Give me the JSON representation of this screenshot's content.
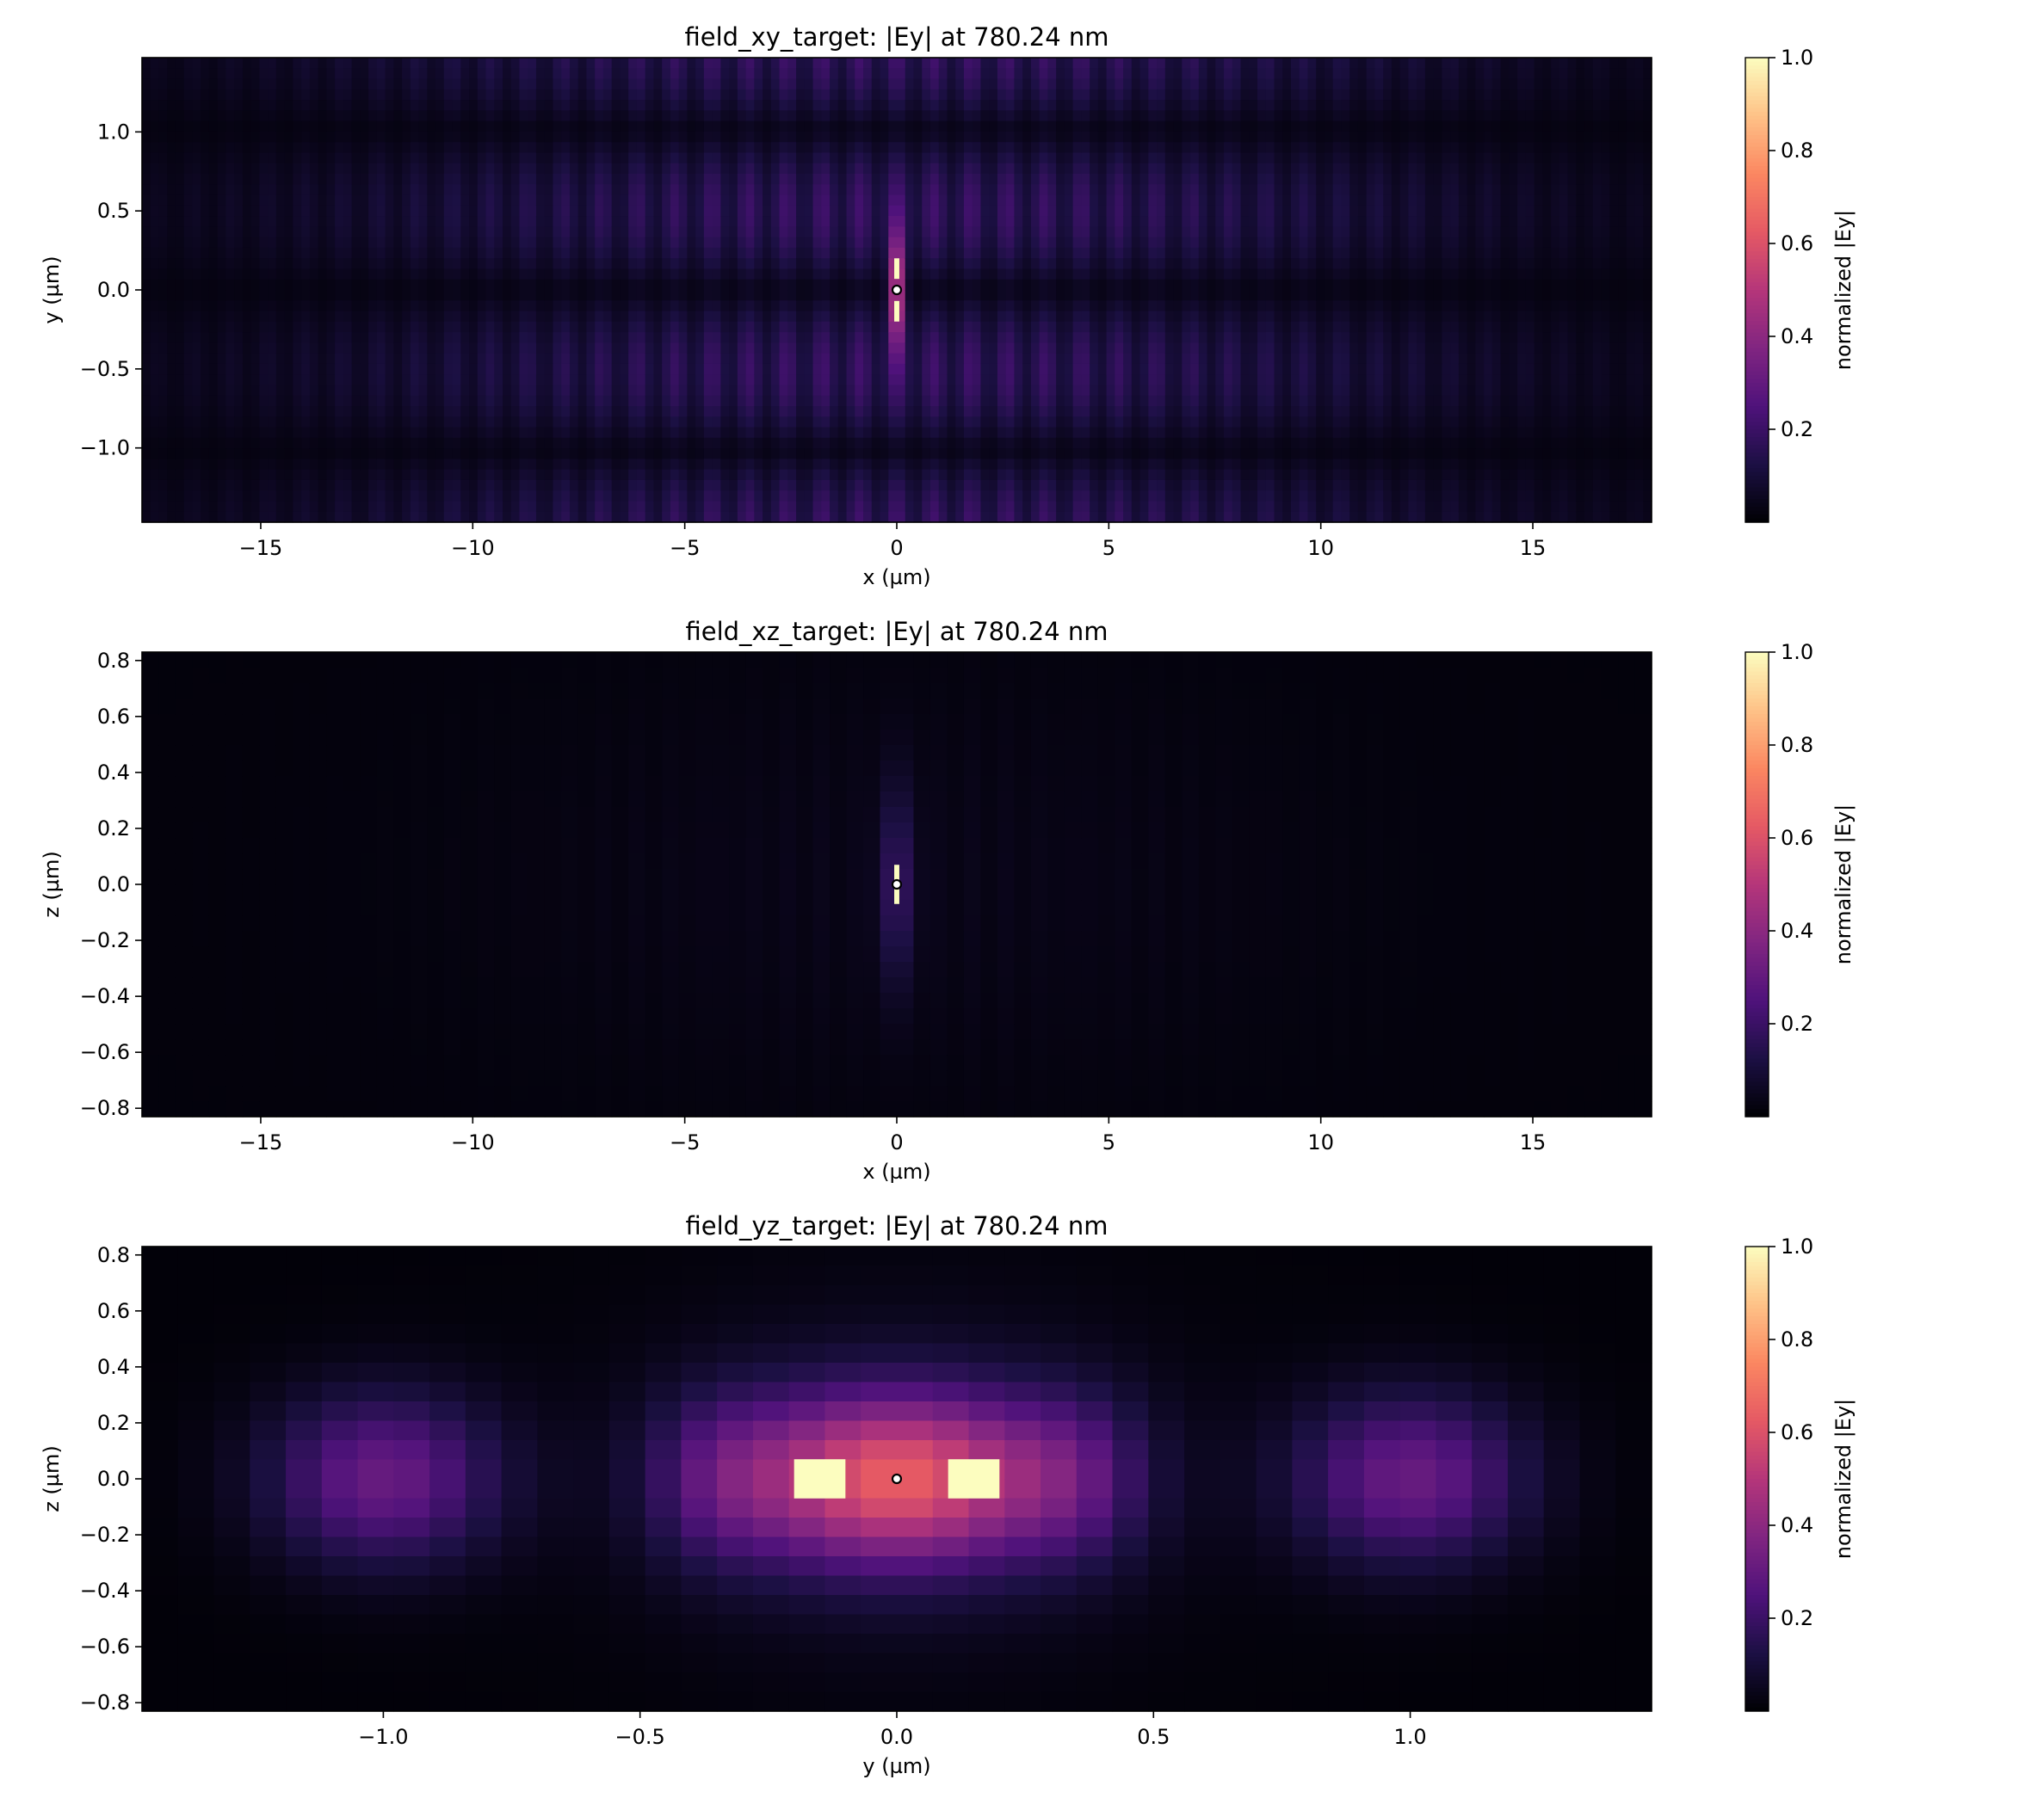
{
  "colormap": {
    "name": "magma",
    "stops": [
      "#000004",
      "#1c1044",
      "#4f127b",
      "#812581",
      "#b5367a",
      "#e55964",
      "#fb8761",
      "#fec287",
      "#fcfdbf"
    ]
  },
  "chart_data": [
    {
      "type": "heatmap",
      "title": "field_xy_target: |Ey| at 780.24 nm",
      "xlabel": "x (µm)",
      "ylabel": "y (µm)",
      "xlim": [
        -17.8,
        17.8
      ],
      "ylim": [
        -1.47,
        1.47
      ],
      "xticks": [
        -15,
        -10,
        -5,
        0,
        5,
        10,
        15
      ],
      "xtick_labels": [
        "−15",
        "−10",
        "−5",
        "0",
        "5",
        "10",
        "15"
      ],
      "yticks": [
        -1.0,
        -0.5,
        0.0,
        0.5,
        1.0
      ],
      "ytick_labels": [
        "−1.0",
        "−0.5",
        "0.0",
        "0.5",
        "1.0"
      ],
      "colorbar": {
        "label": "normalized |Ey|",
        "range": [
          0,
          1
        ],
        "ticks": [
          0.2,
          0.4,
          0.6,
          0.8,
          1.0
        ],
        "tick_labels": [
          "0.2",
          "0.4",
          "0.6",
          "0.8",
          "1.0"
        ]
      },
      "peak_value": 1.0,
      "marker": {
        "x": 0,
        "y": 0
      }
    },
    {
      "type": "heatmap",
      "title": "field_xz_target: |Ey| at 780.24 nm",
      "xlabel": "x (µm)",
      "ylabel": "z (µm)",
      "xlim": [
        -17.8,
        17.8
      ],
      "ylim": [
        -0.83,
        0.83
      ],
      "xticks": [
        -15,
        -10,
        -5,
        0,
        5,
        10,
        15
      ],
      "xtick_labels": [
        "−15",
        "−10",
        "−5",
        "0",
        "5",
        "10",
        "15"
      ],
      "yticks": [
        -0.8,
        -0.6,
        -0.4,
        -0.2,
        0.0,
        0.2,
        0.4,
        0.6,
        0.8
      ],
      "ytick_labels": [
        "−0.8",
        "−0.6",
        "−0.4",
        "−0.2",
        "0.0",
        "0.2",
        "0.4",
        "0.6",
        "0.8"
      ],
      "colorbar": {
        "label": "normalized |Ey|",
        "range": [
          0,
          1
        ],
        "ticks": [
          0.2,
          0.4,
          0.6,
          0.8,
          1.0
        ],
        "tick_labels": [
          "0.2",
          "0.4",
          "0.6",
          "0.8",
          "1.0"
        ]
      },
      "peak_value": 1.0,
      "marker": {
        "x": 0,
        "y": 0
      }
    },
    {
      "type": "heatmap",
      "title": "field_yz_target: |Ey| at 780.24 nm",
      "xlabel": "y (µm)",
      "ylabel": "z (µm)",
      "xlim": [
        -1.47,
        1.47
      ],
      "ylim": [
        -0.83,
        0.83
      ],
      "xticks": [
        -1.0,
        -0.5,
        0.0,
        0.5,
        1.0
      ],
      "xtick_labels": [
        "−1.0",
        "−0.5",
        "0.0",
        "0.5",
        "1.0"
      ],
      "yticks": [
        -0.8,
        -0.6,
        -0.4,
        -0.2,
        0.0,
        0.2,
        0.4,
        0.6,
        0.8
      ],
      "ytick_labels": [
        "−0.8",
        "−0.6",
        "−0.4",
        "−0.2",
        "0.0",
        "0.2",
        "0.4",
        "0.6",
        "0.8"
      ],
      "colorbar": {
        "label": "normalized |Ey|",
        "range": [
          0,
          1
        ],
        "ticks": [
          0.2,
          0.4,
          0.6,
          0.8,
          1.0
        ],
        "tick_labels": [
          "0.2",
          "0.4",
          "0.6",
          "0.8",
          "1.0"
        ]
      },
      "peak_value": 1.0,
      "marker": {
        "x": 0,
        "y": 0
      },
      "hotspots": [
        {
          "y_min": -0.2,
          "y_max": -0.1,
          "z_min": -0.07,
          "z_max": 0.07,
          "value": 1.0
        },
        {
          "y_min": 0.1,
          "y_max": 0.2,
          "z_min": -0.07,
          "z_max": 0.07,
          "value": 1.0
        }
      ]
    }
  ]
}
